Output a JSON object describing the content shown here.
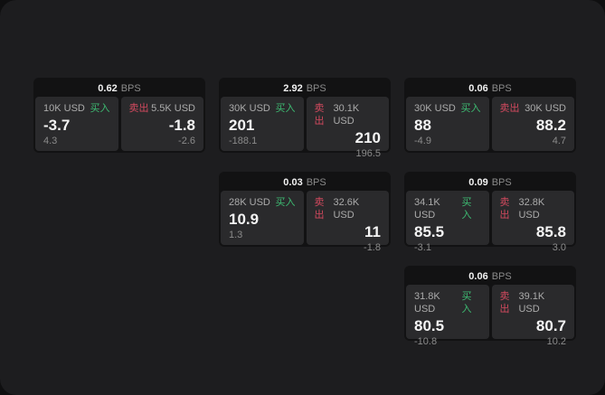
{
  "labels": {
    "buy": "买入",
    "sell": "卖出",
    "bps_unit": "BPS"
  },
  "colors": {
    "backdrop": "#0f0f10",
    "window_bg": "#1d1d1f",
    "card_bg": "#121213",
    "panel_bg": "#2a2a2c",
    "buy_green": "#3dbb72",
    "sell_red": "#d2495e"
  },
  "cards": [
    {
      "bps": "0.62",
      "buy": {
        "size": "10K USD",
        "value": "-3.7",
        "sub": "4.3"
      },
      "sell": {
        "size": "5.5K USD",
        "value": "-1.8",
        "sub": "-2.6"
      }
    },
    {
      "bps": "2.92",
      "buy": {
        "size": "30K USD",
        "value": "201",
        "sub": "-188.1"
      },
      "sell": {
        "size": "30.1K USD",
        "value": "210",
        "sub": "196.5"
      }
    },
    {
      "bps": "0.06",
      "buy": {
        "size": "30K USD",
        "value": "88",
        "sub": "-4.9"
      },
      "sell": {
        "size": "30K USD",
        "value": "88.2",
        "sub": "4.7"
      }
    },
    {
      "bps": "0.03",
      "buy": {
        "size": "28K USD",
        "value": "10.9",
        "sub": "1.3"
      },
      "sell": {
        "size": "32.6K USD",
        "value": "11",
        "sub": "-1.8"
      }
    },
    {
      "bps": "0.09",
      "buy": {
        "size": "34.1K USD",
        "value": "85.5",
        "sub": "-3.1"
      },
      "sell": {
        "size": "32.8K USD",
        "value": "85.8",
        "sub": "3.0"
      }
    },
    {
      "bps": "0.06",
      "buy": {
        "size": "31.8K USD",
        "value": "80.5",
        "sub": "-10.8"
      },
      "sell": {
        "size": "39.1K USD",
        "value": "80.7",
        "sub": "10.2"
      }
    }
  ]
}
